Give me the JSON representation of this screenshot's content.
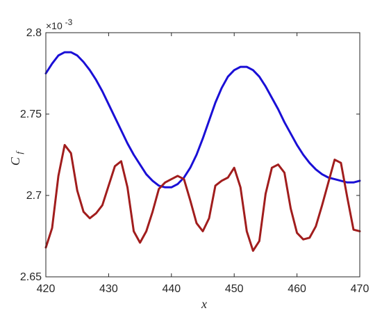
{
  "chart_data": {
    "type": "line",
    "title": "",
    "xlabel": "x",
    "ylabel_main": "C",
    "ylabel_sub": "f",
    "xlim": [
      420,
      470
    ],
    "ylim": [
      2.65,
      2.8
    ],
    "y_scale_note": "×10",
    "y_scale_exp": "-3",
    "xticks": [
      "420",
      "430",
      "440",
      "450",
      "460",
      "470"
    ],
    "yticks": [
      "2.65",
      "2.7",
      "2.75",
      "2.8"
    ],
    "grid": false,
    "series": [
      {
        "color": "#1a0fd6",
        "x": [
          420,
          421,
          422,
          423,
          424,
          425,
          426,
          427,
          428,
          429,
          430,
          431,
          432,
          433,
          434,
          435,
          436,
          437,
          438,
          439,
          440,
          441,
          442,
          443,
          444,
          445,
          446,
          447,
          448,
          449,
          450,
          451,
          452,
          453,
          454,
          455,
          456,
          457,
          458,
          459,
          460,
          461,
          462,
          463,
          464,
          465,
          466,
          467,
          468,
          469,
          470
        ],
        "y": [
          2.775,
          2.781,
          2.786,
          2.788,
          2.788,
          2.786,
          2.782,
          2.777,
          2.771,
          2.764,
          2.756,
          2.748,
          2.74,
          2.732,
          2.725,
          2.719,
          2.713,
          2.709,
          2.706,
          2.705,
          2.705,
          2.707,
          2.711,
          2.717,
          2.725,
          2.735,
          2.746,
          2.757,
          2.766,
          2.773,
          2.777,
          2.779,
          2.779,
          2.777,
          2.773,
          2.767,
          2.76,
          2.753,
          2.745,
          2.738,
          2.731,
          2.725,
          2.72,
          2.716,
          2.713,
          2.711,
          2.71,
          2.709,
          2.708,
          2.708,
          2.709
        ]
      },
      {
        "color": "#a11d1d",
        "x": [
          420,
          421,
          422,
          423,
          424,
          425,
          426,
          427,
          428,
          429,
          430,
          431,
          432,
          433,
          434,
          435,
          436,
          437,
          438,
          439,
          440,
          441,
          442,
          443,
          444,
          445,
          446,
          447,
          448,
          449,
          450,
          451,
          452,
          453,
          454,
          455,
          456,
          457,
          458,
          459,
          460,
          461,
          462,
          463,
          464,
          465,
          466,
          467,
          468,
          469,
          470
        ],
        "y": [
          2.668,
          2.68,
          2.712,
          2.731,
          2.726,
          2.703,
          2.69,
          2.686,
          2.689,
          2.694,
          2.706,
          2.718,
          2.721,
          2.705,
          2.678,
          2.671,
          2.678,
          2.69,
          2.704,
          2.708,
          2.71,
          2.712,
          2.71,
          2.697,
          2.683,
          2.678,
          2.686,
          2.706,
          2.709,
          2.711,
          2.717,
          2.705,
          2.678,
          2.666,
          2.672,
          2.701,
          2.717,
          2.719,
          2.714,
          2.692,
          2.677,
          2.673,
          2.674,
          2.681,
          2.694,
          2.708,
          2.722,
          2.72,
          2.699,
          2.679,
          2.678
        ]
      }
    ]
  }
}
